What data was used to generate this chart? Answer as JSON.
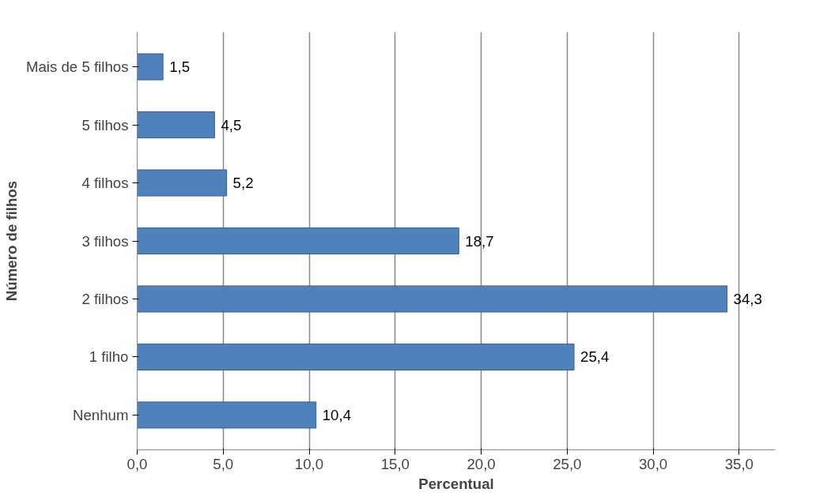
{
  "chart_data": {
    "type": "bar",
    "orientation": "horizontal",
    "xlabel": "Percentual",
    "ylabel": "Número de filhos",
    "categories": [
      "Mais de 5 filhos",
      "5 filhos",
      "4 filhos",
      "3 filhos",
      "2 filhos",
      "1 filho",
      "Nenhum"
    ],
    "values": [
      1.5,
      4.5,
      5.2,
      18.7,
      34.3,
      25.4,
      10.4
    ],
    "value_labels": [
      "1,5",
      "4,5",
      "5,2",
      "18,7",
      "34,3",
      "25,4",
      "10,4"
    ],
    "color": "#4f81bd",
    "xlim": [
      0,
      35
    ],
    "xticks": [
      {
        "value": 0,
        "label": "0,0"
      },
      {
        "value": 5,
        "label": "5,0"
      },
      {
        "value": 10,
        "label": "10,0"
      },
      {
        "value": 15,
        "label": "15,0"
      },
      {
        "value": 20,
        "label": "20,0"
      },
      {
        "value": 25,
        "label": "25,0"
      },
      {
        "value": 30,
        "label": "30,0"
      },
      {
        "value": 35,
        "label": "35,0"
      }
    ],
    "grid": "x"
  }
}
